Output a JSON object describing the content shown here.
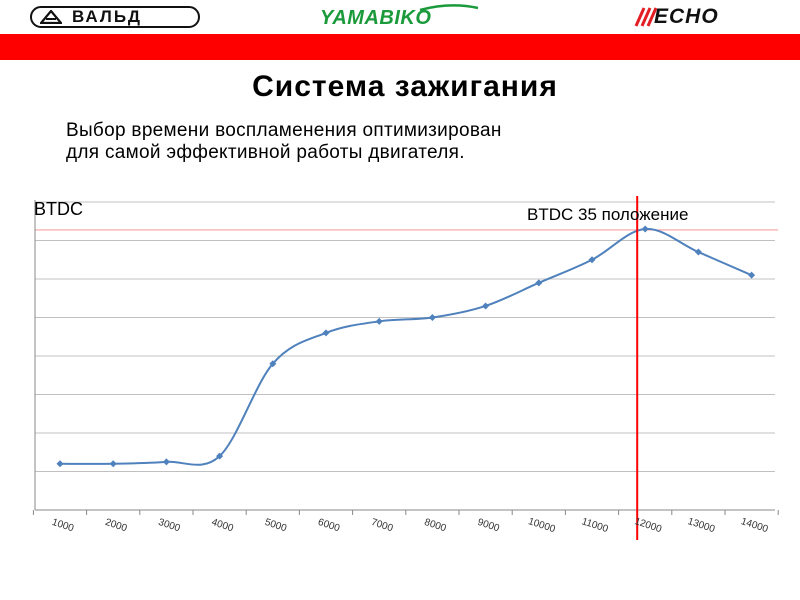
{
  "logos": {
    "left": "ВАЛЬД",
    "center": "YAMABIKO",
    "right": "ECHO"
  },
  "colors": {
    "band": "#ff0000",
    "line": "#4f81bd",
    "marker_line": "#ff0000",
    "ref_line": "#f4a0a0",
    "grid": "#c0c0c0"
  },
  "slide": {
    "title": "Система зажигания",
    "subtitle_lines": [
      "Выбор времени воспламенения оптимизирован",
      "для самой эффективной работы двигателя."
    ]
  },
  "chart_data": {
    "type": "line",
    "ylabel": "BTDC",
    "annotation": "BTDC  35 положение",
    "marker_x": 12000,
    "grid": true,
    "x": [
      1000,
      2000,
      3000,
      4000,
      5000,
      6000,
      7000,
      8000,
      9000,
      10000,
      11000,
      12000,
      13000,
      14000
    ],
    "categories": [
      "1000",
      "2000",
      "3000",
      "4000",
      "5000",
      "6000",
      "7000",
      "8000",
      "9000",
      "10000",
      "11000",
      "12000",
      "13000",
      "14000"
    ],
    "series": [
      {
        "values": [
          1.2,
          1.2,
          1.25,
          1.4,
          3.8,
          4.6,
          4.9,
          5.0,
          5.3,
          5.9,
          6.5,
          7.3,
          6.7,
          6.1
        ]
      }
    ]
  }
}
